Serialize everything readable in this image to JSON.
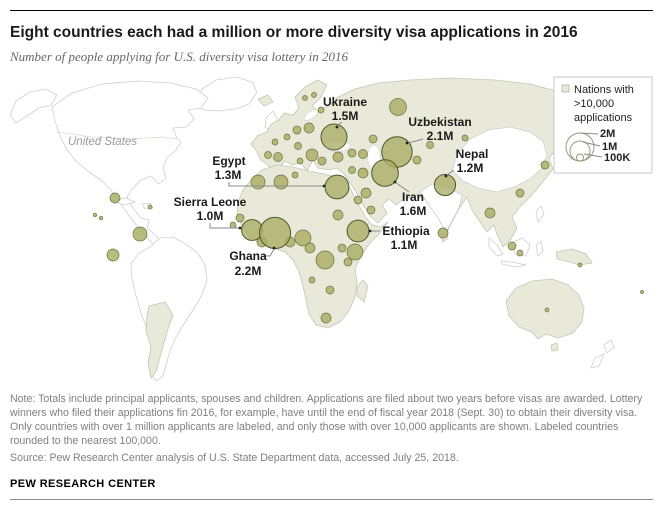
{
  "header": {
    "title": "Eight countries each had a million or more diversity visa applications in 2016",
    "subtitle": "Number of people applying for U.S. diversity visa lottery in 2016"
  },
  "legend": {
    "label_line1": "Nations with",
    "label_line2": ">10,000",
    "label_line3": "applications",
    "size_labels": [
      "2M",
      "1M",
      "100K"
    ]
  },
  "map": {
    "us_label": "United States"
  },
  "chart_data": {
    "type": "bubble-map",
    "title": "Eight countries each had a million or more diversity visa applications in 2016",
    "subtitle": "Number of people applying for U.S. diversity visa lottery in 2016",
    "series": [
      {
        "name": "Ukraine",
        "value_label": "1.5M",
        "applications_millions": 1.5
      },
      {
        "name": "Uzbekistan",
        "value_label": "2.1M",
        "applications_millions": 2.1
      },
      {
        "name": "Nepal",
        "value_label": "1.2M",
        "applications_millions": 1.2
      },
      {
        "name": "Iran",
        "value_label": "1.6M",
        "applications_millions": 1.6
      },
      {
        "name": "Egypt",
        "value_label": "1.3M",
        "applications_millions": 1.3
      },
      {
        "name": "Ethiopia",
        "value_label": "1.1M",
        "applications_millions": 1.1
      },
      {
        "name": "Sierra Leone",
        "value_label": "1.0M",
        "applications_millions": 1.0
      },
      {
        "name": "Ghana",
        "value_label": "2.2M",
        "applications_millions": 2.2
      }
    ],
    "legend": {
      "label": "Nations with >10,000 applications",
      "bubble_sizes": [
        "2M",
        "1M",
        "100K"
      ]
    },
    "layout_hints": {
      "legend_position": "top-right",
      "labeled_threshold": "1 million applicants",
      "shown_threshold": "10,000 applicants"
    },
    "colors": {
      "bubble_fill": "#a9ad63",
      "bubble_stroke": "#54562e",
      "eligible_country_fill": "#e9e9da",
      "country_border": "#cccccc"
    }
  },
  "footer": {
    "note": "Note: Totals include principal applicants, spouses and children. Applications are filed about two years before visas are awarded. Lottery winners who filed their applications fin 2016, for example, have until the end of fiscal year 2018 (Sept. 30) to obtain their diversity visa. Only countries with over 1 million applicants are labeled, and only those with over 10,000 applicants are shown. Labeled countries rounded to the nearest 100,000.",
    "source": "Source: Pew Research Center analysis of U.S. State Department data, accessed July 25, 2018.",
    "brand": "PEW RESEARCH CENTER"
  }
}
